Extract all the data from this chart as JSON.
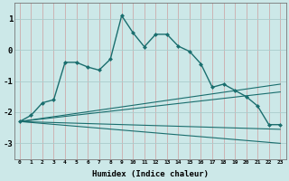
{
  "xlabel": "Humidex (Indice chaleur)",
  "bg_color": "#cce8e8",
  "grid_color": "#aacccc",
  "line_color": "#1a6e6e",
  "xlim_min": -0.5,
  "xlim_max": 23.5,
  "ylim_min": -3.5,
  "ylim_max": 1.5,
  "yticks": [
    -3,
    -2,
    -1,
    0,
    1
  ],
  "xticks": [
    0,
    1,
    2,
    3,
    4,
    5,
    6,
    7,
    8,
    9,
    10,
    11,
    12,
    13,
    14,
    15,
    16,
    17,
    18,
    19,
    20,
    21,
    22,
    23
  ],
  "series1_x": [
    0,
    1,
    2,
    3,
    4,
    5,
    6,
    7,
    8,
    9,
    10,
    11,
    12,
    13,
    14,
    15,
    16,
    17,
    18,
    19,
    20,
    21,
    22,
    23
  ],
  "series1_y": [
    -2.3,
    -2.1,
    -1.7,
    -1.6,
    -0.4,
    -0.4,
    -0.55,
    -0.65,
    -0.3,
    1.1,
    0.55,
    0.1,
    0.5,
    0.5,
    0.12,
    -0.05,
    -0.45,
    -1.2,
    -1.1,
    -1.3,
    -1.5,
    -1.8,
    -2.4,
    -2.4
  ],
  "series2_x": [
    0,
    23
  ],
  "series2_y": [
    -2.3,
    -2.55
  ],
  "series3_x": [
    0,
    23
  ],
  "series3_y": [
    -2.3,
    -3.0
  ],
  "series4_x": [
    0,
    23
  ],
  "series4_y": [
    -2.3,
    -1.1
  ],
  "series5_x": [
    0,
    23
  ],
  "series5_y": [
    -2.3,
    -1.35
  ]
}
